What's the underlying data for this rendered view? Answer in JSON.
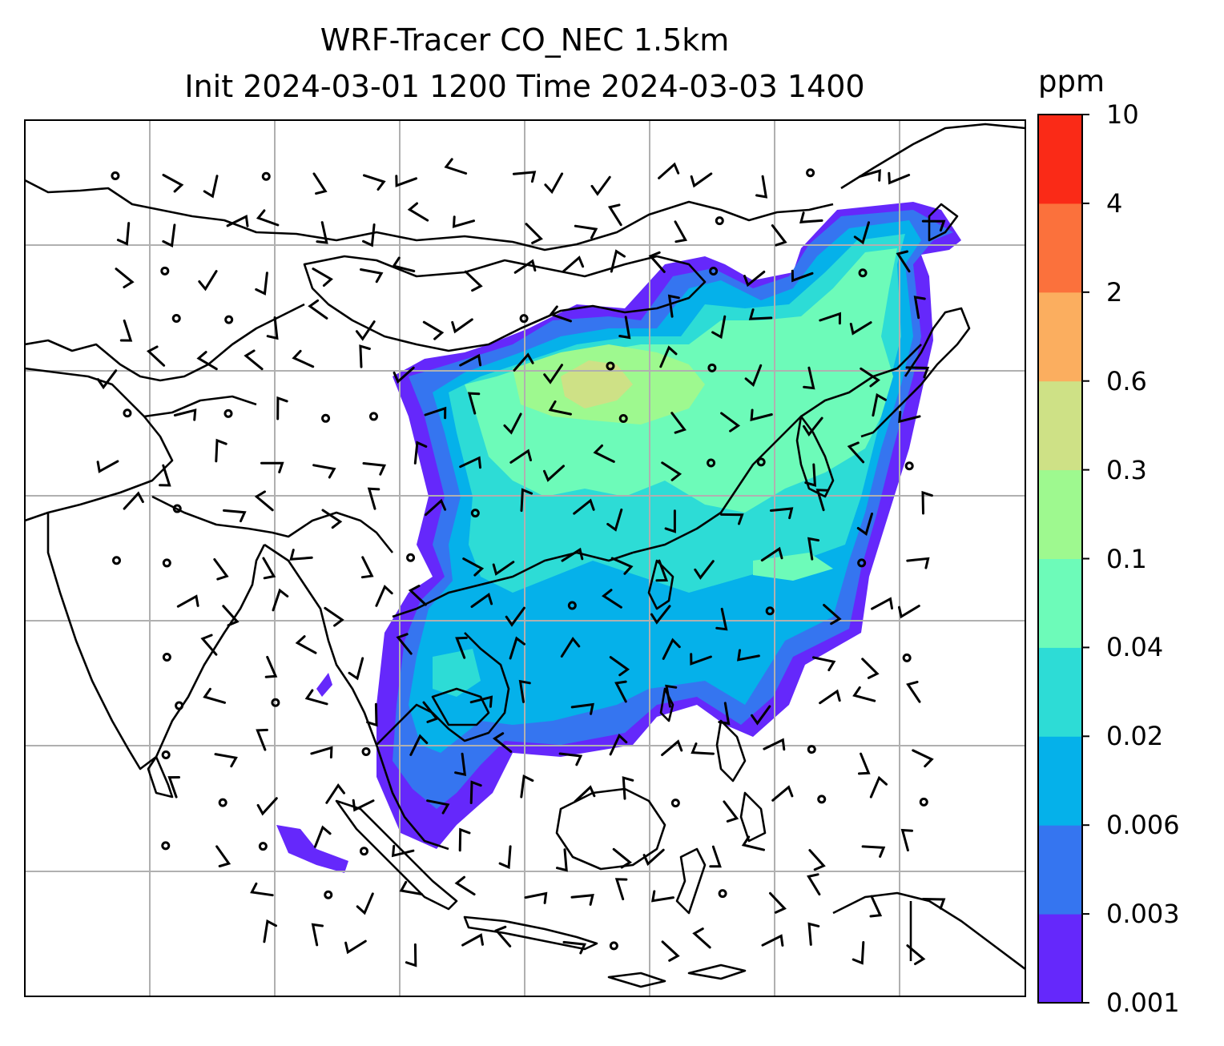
{
  "title_line1": "WRF-Tracer CO_NEC 1.5km",
  "title_line2": "Init 2024-03-01 1200 Time 2024-03-03 1400",
  "colorbar": {
    "unit": "ppm",
    "levels": [
      "0.001",
      "0.003",
      "0.006",
      "0.02",
      "0.04",
      "0.1",
      "0.3",
      "0.6",
      "2",
      "4",
      "10"
    ],
    "colors": [
      "#6528fb",
      "#3575f0",
      "#05b1ea",
      "#2ddcd6",
      "#6dfbb9",
      "#9ef98f",
      "#cee186",
      "#fbae5f",
      "#fb713c",
      "#fa2a17"
    ]
  },
  "map": {
    "frame_color": "#000000",
    "gridline_color": "#b0b0b0",
    "coastline_color": "#000000",
    "wind_barb_color": "#000000",
    "background": "#ffffff"
  }
}
